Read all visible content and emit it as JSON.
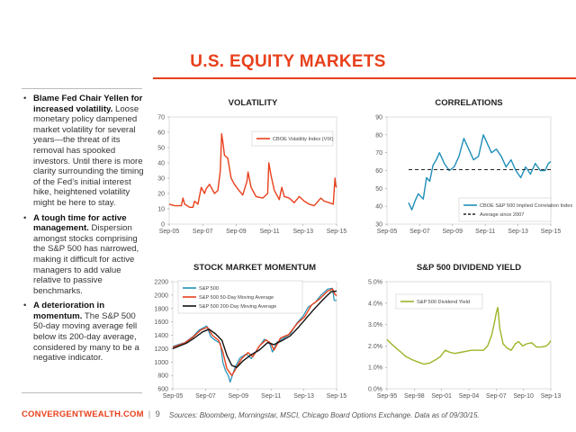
{
  "title": "U.S. EQUITY MARKETS",
  "bullets": [
    {
      "bold": "Blame Fed Chair Yellen for increased volatility.",
      "text": "Loose monetary policy dampened market volatility for several years—the threat of its removal has spooked investors. Until there is more clarity surrounding the timing of the Fed’s initial interest hike, heightened volatility might be here to stay."
    },
    {
      "bold": "A tough time for active management.",
      "text": "Dispersion amongst stocks comprising the S&P 500 has narrowed, making it difficult for active managers to add value relative to passive benchmarks."
    },
    {
      "bold": "A deterioration in momentum.",
      "text": "The S&P 500 50-day moving average fell below its 200-day average, considered by many to be a negative indicator."
    }
  ],
  "footer": {
    "brand": "CONVERGENTWEALTH.COM",
    "separator": "|",
    "page": "9"
  },
  "source": "Sources: Bloomberg, Morningstar, MSCI, Chicago Board Options Exchange. Data as of 09/30/15.",
  "colors": {
    "accent": "#e8401c",
    "volatility": "#e8401c",
    "correlation": "#1f8fb8",
    "sp500": "#1f8fb8",
    "ma50": "#e8401c",
    "ma200": "#111111",
    "dividend": "#9bb526"
  },
  "chart_data": [
    {
      "type": "line",
      "title": "VOLATILITY",
      "x_ticks": [
        "Sep-05",
        "Sep-07",
        "Sep-09",
        "Sep-11",
        "Sep-13",
        "Sep-15"
      ],
      "y_ticks": [
        "0",
        "10",
        "20",
        "30",
        "40",
        "50",
        "60",
        "70"
      ],
      "ylim": [
        0,
        70
      ],
      "xlim": [
        2005.67,
        2015.75
      ],
      "legend_position": "top-right",
      "series": [
        {
          "name": "CBOE Volatility Index (VIX)",
          "x": [
            2005.67,
            2006.0,
            2006.4,
            2006.5,
            2006.6,
            2006.9,
            2007.1,
            2007.2,
            2007.4,
            2007.6,
            2007.8,
            2007.9,
            2008.1,
            2008.4,
            2008.6,
            2008.75,
            2008.83,
            2008.92,
            2009.0,
            2009.2,
            2009.4,
            2009.6,
            2009.8,
            2010.1,
            2010.35,
            2010.42,
            2010.6,
            2010.9,
            2011.3,
            2011.6,
            2011.67,
            2011.8,
            2012.0,
            2012.3,
            2012.45,
            2012.6,
            2012.9,
            2013.2,
            2013.5,
            2013.8,
            2014.1,
            2014.4,
            2014.8,
            2015.0,
            2015.3,
            2015.55,
            2015.65,
            2015.7,
            2015.75
          ],
          "y": [
            13,
            12,
            12,
            17,
            13,
            11,
            11,
            15,
            13,
            24,
            20,
            23,
            26,
            20,
            22,
            35,
            59,
            52,
            45,
            43,
            30,
            26,
            23,
            19,
            28,
            34,
            24,
            18,
            17,
            20,
            40,
            32,
            22,
            16,
            24,
            18,
            17,
            14,
            18,
            15,
            13,
            12,
            17,
            15,
            14,
            13,
            30,
            25,
            24
          ]
        }
      ]
    },
    {
      "type": "line",
      "title": "CORRELATIONS",
      "x_ticks": [
        "Sep-05",
        "Sep-07",
        "Sep-09",
        "Sep-11",
        "Sep-13",
        "Sep-15"
      ],
      "y_ticks": [
        "30",
        "40",
        "50",
        "60",
        "70",
        "80",
        "90"
      ],
      "ylim": [
        30,
        90
      ],
      "xlim": [
        2005.67,
        2015.75
      ],
      "legend_position": "bottom-right",
      "series": [
        {
          "name": "CBOE S&P 500 Implied Correlation Index",
          "x": [
            2007.0,
            2007.2,
            2007.4,
            2007.6,
            2007.9,
            2008.1,
            2008.3,
            2008.5,
            2008.7,
            2008.9,
            2009.2,
            2009.5,
            2009.8,
            2010.1,
            2010.4,
            2010.7,
            2011.0,
            2011.3,
            2011.6,
            2011.8,
            2012.1,
            2012.4,
            2012.7,
            2013.0,
            2013.3,
            2013.6,
            2013.9,
            2014.2,
            2014.5,
            2014.8,
            2015.1,
            2015.4,
            2015.6,
            2015.75
          ],
          "y": [
            42,
            38,
            43,
            47,
            44,
            56,
            54,
            63,
            66,
            70,
            64,
            60,
            62,
            68,
            78,
            72,
            66,
            68,
            80,
            76,
            70,
            72,
            68,
            62,
            66,
            60,
            56,
            62,
            58,
            64,
            60,
            60,
            64,
            65
          ]
        },
        {
          "name": "Average since 2007",
          "x": [
            2007.0,
            2015.75
          ],
          "y": [
            60.5,
            60.5
          ],
          "style": "dashed"
        }
      ]
    },
    {
      "type": "line",
      "title": "STOCK MARKET MOMENTUM",
      "x_ticks": [
        "Sep-05",
        "Sep-07",
        "Sep-09",
        "Sep-11",
        "Sep-13",
        "Sep-15"
      ],
      "y_ticks": [
        "600",
        "800",
        "1000",
        "1200",
        "1400",
        "1600",
        "1800",
        "2000",
        "2200"
      ],
      "ylim": [
        600,
        2200
      ],
      "xlim": [
        2005.67,
        2015.75
      ],
      "legend_position": "top-left",
      "series": [
        {
          "name": "S&P 500",
          "x": [
            2005.67,
            2006.0,
            2006.4,
            2006.9,
            2007.3,
            2007.75,
            2008.0,
            2008.3,
            2008.6,
            2008.75,
            2008.9,
            2009.1,
            2009.2,
            2009.5,
            2009.8,
            2010.2,
            2010.5,
            2010.9,
            2011.3,
            2011.6,
            2011.8,
            2012.1,
            2012.5,
            2012.9,
            2013.3,
            2013.7,
            2014.0,
            2014.4,
            2014.8,
            2015.2,
            2015.5,
            2015.6,
            2015.75
          ],
          "y": [
            1230,
            1260,
            1290,
            1380,
            1480,
            1540,
            1380,
            1320,
            1280,
            1000,
            880,
            790,
            700,
            920,
            1060,
            1120,
            1050,
            1200,
            1340,
            1300,
            1150,
            1300,
            1360,
            1420,
            1580,
            1690,
            1820,
            1880,
            2000,
            2090,
            2100,
            1920,
            1920
          ]
        },
        {
          "name": "S&P 500 50-Day Moving Average",
          "x": [
            2005.67,
            2006.4,
            2006.9,
            2007.4,
            2007.8,
            2008.1,
            2008.5,
            2008.75,
            2009.0,
            2009.3,
            2009.5,
            2009.9,
            2010.3,
            2010.6,
            2011.0,
            2011.4,
            2011.7,
            2011.9,
            2012.3,
            2012.8,
            2013.3,
            2013.8,
            2014.2,
            2014.7,
            2015.2,
            2015.5,
            2015.65,
            2015.75
          ],
          "y": [
            1220,
            1285,
            1370,
            1480,
            1520,
            1400,
            1320,
            1150,
            900,
            800,
            880,
            1050,
            1140,
            1080,
            1240,
            1330,
            1280,
            1180,
            1360,
            1410,
            1570,
            1680,
            1850,
            1940,
            2060,
            2090,
            2010,
            1990
          ]
        },
        {
          "name": "S&P 500 200-Day Moving Average",
          "x": [
            2005.67,
            2006.5,
            2007.0,
            2007.5,
            2007.9,
            2008.3,
            2008.7,
            2009.0,
            2009.3,
            2009.6,
            2010.0,
            2010.5,
            2011.0,
            2011.5,
            2011.9,
            2012.4,
            2012.9,
            2013.4,
            2013.9,
            2014.4,
            2014.9,
            2015.4,
            2015.75
          ],
          "y": [
            1200,
            1280,
            1360,
            1450,
            1490,
            1420,
            1320,
            1100,
            950,
            920,
            1020,
            1110,
            1180,
            1290,
            1260,
            1320,
            1390,
            1520,
            1660,
            1800,
            1930,
            2050,
            2060
          ]
        }
      ]
    },
    {
      "type": "line",
      "title": "S&P 500 DIVIDEND YIELD",
      "x_ticks": [
        "Sep-95",
        "Sep-98",
        "Sep-01",
        "Sep-04",
        "Sep-07",
        "Sep-10",
        "Sep-13"
      ],
      "y_ticks": [
        "0.0%",
        "1.0%",
        "2.0%",
        "3.0%",
        "4.0%",
        "5.0%"
      ],
      "ylim": [
        0,
        5
      ],
      "xlim": [
        1995.67,
        2015.75
      ],
      "legend_position": "top-left",
      "series": [
        {
          "name": "S&P 500 Dividend Yield",
          "x": [
            1995.67,
            1996.2,
            1996.8,
            1997.4,
            1998.0,
            1998.8,
            1999.5,
            2000.2,
            2000.9,
            2001.6,
            2002.2,
            2002.8,
            2003.4,
            2004.0,
            2004.7,
            2005.3,
            2006.0,
            2006.8,
            2007.5,
            2008.0,
            2008.5,
            2008.9,
            2009.1,
            2009.25,
            2009.5,
            2009.9,
            2010.4,
            2010.9,
            2011.4,
            2011.8,
            2012.3,
            2012.8,
            2013.4,
            2014.0,
            2014.6,
            2015.2,
            2015.5,
            2015.75
          ],
          "y": [
            2.3,
            2.1,
            1.9,
            1.7,
            1.5,
            1.35,
            1.25,
            1.15,
            1.2,
            1.35,
            1.5,
            1.8,
            1.7,
            1.65,
            1.7,
            1.75,
            1.8,
            1.8,
            1.8,
            2.0,
            2.5,
            3.2,
            3.6,
            3.8,
            2.8,
            2.1,
            1.9,
            1.8,
            2.1,
            2.2,
            2.0,
            2.1,
            2.15,
            1.95,
            1.95,
            2.0,
            2.1,
            2.25
          ]
        }
      ]
    }
  ]
}
